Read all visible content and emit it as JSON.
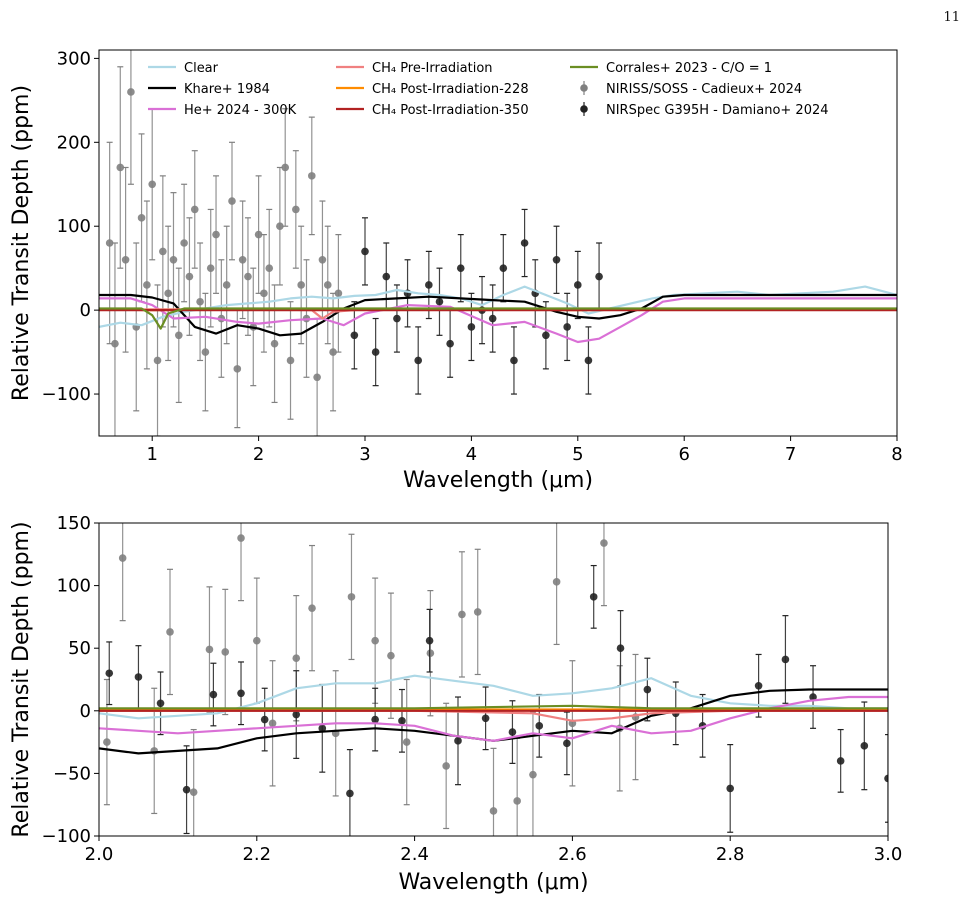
{
  "page_number": "11",
  "chart_data": [
    {
      "type": "line",
      "xlabel": "Wavelength (μm)",
      "ylabel": "Relative Transit Depth (ppm)",
      "xlim": [
        0.5,
        8
      ],
      "ylim": [
        -150,
        310
      ],
      "xticks": [
        1,
        2,
        3,
        4,
        5,
        6,
        7,
        8
      ],
      "yticks": [
        -100,
        0,
        100,
        200,
        300
      ],
      "legend_position": "top",
      "legend": [
        {
          "label": "Clear",
          "color": "#add8e6",
          "kind": "line"
        },
        {
          "label": "Khare+ 1984",
          "color": "#000000",
          "kind": "line"
        },
        {
          "label": "He+ 2024 - 300K",
          "color": "#da70d6",
          "kind": "line"
        },
        {
          "label": "CH₄ Pre-Irradiation",
          "color": "#f08080",
          "kind": "line"
        },
        {
          "label": "CH₄ Post-Irradiation-228",
          "color": "#ff8c00",
          "kind": "line"
        },
        {
          "label": "CH₄ Post-Irradiation-350",
          "color": "#b22222",
          "kind": "line"
        },
        {
          "label": "Corrales+ 2023 - C/O = 1",
          "color": "#6b8e23",
          "kind": "line"
        },
        {
          "label": "NIRISS/SOSS - Cadieux+ 2024",
          "color": "#808080",
          "kind": "errorbar"
        },
        {
          "label": "NIRSpec G395H - Damiano+ 2024",
          "color": "#222222",
          "kind": "errorbar"
        }
      ],
      "series": [
        {
          "name": "Clear",
          "color": "#add8e6",
          "x": [
            0.5,
            0.7,
            0.9,
            1.1,
            1.3,
            1.5,
            1.7,
            1.9,
            2.1,
            2.3,
            2.5,
            2.7,
            2.9,
            3.1,
            3.3,
            3.5,
            3.7,
            3.9,
            4.1,
            4.3,
            4.5,
            4.7,
            4.9,
            5.1,
            5.3,
            5.5,
            5.7,
            5.9,
            6.2,
            6.5,
            6.8,
            7.1,
            7.4,
            7.7,
            8.0
          ],
          "y": [
            -20,
            -15,
            -18,
            -8,
            -2,
            2,
            6,
            8,
            10,
            14,
            16,
            14,
            17,
            18,
            24,
            20,
            18,
            14,
            6,
            18,
            28,
            18,
            8,
            -4,
            2,
            8,
            14,
            18,
            20,
            22,
            18,
            20,
            22,
            28,
            18
          ]
        },
        {
          "name": "Khare+ 1984",
          "color": "#000000",
          "x": [
            0.5,
            0.8,
            1.0,
            1.2,
            1.4,
            1.6,
            1.8,
            2.0,
            2.2,
            2.4,
            2.6,
            2.8,
            3.0,
            3.3,
            3.6,
            3.9,
            4.2,
            4.5,
            4.8,
            5.0,
            5.2,
            5.4,
            5.6,
            5.8,
            6.0,
            6.5,
            7.0,
            7.5,
            8.0
          ],
          "y": [
            18,
            18,
            15,
            8,
            -20,
            -28,
            -18,
            -22,
            -30,
            -28,
            -14,
            2,
            12,
            14,
            16,
            14,
            12,
            10,
            -2,
            -8,
            -10,
            -6,
            2,
            16,
            18,
            18,
            18,
            18,
            18
          ]
        },
        {
          "name": "He+ 2024 - 300K",
          "color": "#da70d6",
          "x": [
            0.5,
            0.8,
            1.0,
            1.2,
            1.5,
            1.8,
            2.0,
            2.3,
            2.6,
            2.8,
            3.0,
            3.4,
            3.8,
            4.2,
            4.5,
            4.8,
            5.0,
            5.2,
            5.4,
            5.6,
            5.8,
            6.0,
            6.5,
            7.0,
            7.5,
            8.0
          ],
          "y": [
            14,
            14,
            6,
            -10,
            -8,
            -14,
            -16,
            -12,
            -10,
            -18,
            -4,
            6,
            4,
            -18,
            -14,
            -28,
            -38,
            -34,
            -20,
            -6,
            10,
            14,
            14,
            14,
            14,
            14
          ]
        },
        {
          "name": "CH₄ Pre-Irradiation",
          "color": "#f08080",
          "x": [
            0.5,
            1.0,
            2.0,
            2.5,
            2.6,
            2.7,
            3.0,
            4.0,
            5.0,
            6.0,
            7.0,
            8.0
          ],
          "y": [
            1,
            1,
            1,
            0,
            -10,
            -2,
            1,
            1,
            1,
            1,
            1,
            1
          ]
        },
        {
          "name": "CH₄ Post-Irradiation-228",
          "color": "#ff8c00",
          "x": [
            0.5,
            1.0,
            2.0,
            3.0,
            4.0,
            5.0,
            6.0,
            7.0,
            8.0
          ],
          "y": [
            1,
            0,
            1,
            1,
            1,
            0,
            1,
            1,
            1
          ]
        },
        {
          "name": "CH₄ Post-Irradiation-350",
          "color": "#b22222",
          "x": [
            0.5,
            1.0,
            2.0,
            3.0,
            4.0,
            5.0,
            6.0,
            7.0,
            8.0
          ],
          "y": [
            0,
            0,
            0,
            0,
            0,
            0,
            0,
            0,
            0
          ]
        },
        {
          "name": "Corrales+ 2023 - C/O = 1",
          "color": "#6b8e23",
          "x": [
            0.5,
            0.9,
            1.0,
            1.08,
            1.15,
            1.3,
            2.0,
            3.0,
            4.0,
            5.0,
            6.0,
            7.0,
            8.0
          ],
          "y": [
            2,
            2,
            -6,
            -22,
            -4,
            2,
            2,
            2,
            2,
            2,
            2,
            2,
            2
          ]
        },
        {
          "name": "NIRISS/SOSS - Cadieux+ 2024",
          "color": "#808080",
          "kind": "errorbar",
          "x": [
            0.6,
            0.65,
            0.7,
            0.75,
            0.8,
            0.85,
            0.9,
            0.95,
            1.0,
            1.05,
            1.1,
            1.15,
            1.2,
            1.25,
            1.3,
            1.35,
            1.4,
            1.45,
            1.5,
            1.55,
            1.6,
            1.65,
            1.7,
            1.75,
            1.8,
            1.85,
            1.9,
            1.95,
            2.0,
            2.05,
            2.1,
            2.15,
            2.2,
            2.25,
            2.3,
            2.35,
            2.4,
            2.45,
            2.5,
            2.55,
            2.6,
            2.65,
            2.7,
            2.75
          ],
          "y": [
            80,
            -40,
            170,
            60,
            260,
            -20,
            110,
            30,
            150,
            -60,
            70,
            20,
            60,
            -30,
            80,
            40,
            120,
            10,
            -50,
            50,
            90,
            -10,
            30,
            130,
            -70,
            60,
            40,
            -20,
            90,
            20,
            50,
            -40,
            100,
            170,
            -60,
            120,
            30,
            -10,
            160,
            -80,
            60,
            30,
            -50,
            20
          ],
          "err": [
            120,
            120,
            120,
            110,
            110,
            100,
            100,
            100,
            90,
            90,
            90,
            80,
            80,
            80,
            70,
            70,
            70,
            70,
            70,
            70,
            70,
            70,
            70,
            70,
            70,
            70,
            70,
            70,
            70,
            70,
            70,
            70,
            70,
            70,
            70,
            70,
            70,
            70,
            70,
            70,
            70,
            70,
            70,
            70
          ]
        },
        {
          "name": "NIRSpec G395H - Damiano+ 2024",
          "color": "#222222",
          "kind": "errorbar",
          "x": [
            2.9,
            3.0,
            3.1,
            3.2,
            3.3,
            3.4,
            3.5,
            3.6,
            3.7,
            3.8,
            3.9,
            4.0,
            4.1,
            4.2,
            4.3,
            4.4,
            4.5,
            4.6,
            4.7,
            4.8,
            4.9,
            5.0,
            5.1,
            5.2
          ],
          "y": [
            -30,
            70,
            -50,
            40,
            -10,
            20,
            -60,
            30,
            10,
            -40,
            50,
            -20,
            0,
            -10,
            50,
            -60,
            80,
            20,
            -30,
            60,
            -20,
            30,
            -60,
            40
          ],
          "err": [
            40,
            40,
            40,
            40,
            40,
            40,
            40,
            40,
            40,
            40,
            40,
            40,
            40,
            40,
            40,
            40,
            40,
            40,
            40,
            40,
            40,
            40,
            40,
            40
          ]
        }
      ]
    },
    {
      "type": "line",
      "xlabel": "Wavelength (μm)",
      "ylabel": "Relative Transit Depth (ppm)",
      "xlim": [
        2.0,
        3.0
      ],
      "ylim": [
        -100,
        150
      ],
      "xticks": [
        2.0,
        2.2,
        2.4,
        2.6,
        2.8,
        3.0
      ],
      "yticks": [
        -100,
        -50,
        0,
        50,
        100,
        150
      ],
      "series": [
        {
          "name": "Clear",
          "color": "#add8e6",
          "x": [
            2.0,
            2.05,
            2.1,
            2.15,
            2.2,
            2.25,
            2.3,
            2.35,
            2.4,
            2.45,
            2.5,
            2.55,
            2.6,
            2.65,
            2.7,
            2.75,
            2.8,
            2.85,
            2.9,
            2.95,
            3.0
          ],
          "y": [
            -2,
            -6,
            -4,
            -2,
            6,
            18,
            22,
            22,
            28,
            24,
            20,
            12,
            14,
            18,
            26,
            12,
            6,
            4,
            4,
            2,
            2
          ]
        },
        {
          "name": "Khare+ 1984",
          "color": "#000000",
          "x": [
            2.0,
            2.05,
            2.1,
            2.15,
            2.2,
            2.25,
            2.3,
            2.35,
            2.4,
            2.45,
            2.5,
            2.55,
            2.6,
            2.65,
            2.7,
            2.75,
            2.8,
            2.85,
            2.9,
            2.95,
            3.0
          ],
          "y": [
            -30,
            -34,
            -32,
            -30,
            -22,
            -18,
            -16,
            -14,
            -16,
            -20,
            -24,
            -20,
            -16,
            -18,
            -4,
            2,
            12,
            16,
            17,
            17,
            17
          ]
        },
        {
          "name": "He+ 2024 - 300K",
          "color": "#da70d6",
          "x": [
            2.0,
            2.05,
            2.1,
            2.15,
            2.2,
            2.25,
            2.3,
            2.35,
            2.4,
            2.45,
            2.5,
            2.55,
            2.6,
            2.65,
            2.7,
            2.75,
            2.8,
            2.85,
            2.9,
            2.95,
            3.0
          ],
          "y": [
            -14,
            -16,
            -18,
            -16,
            -14,
            -12,
            -10,
            -10,
            -12,
            -20,
            -24,
            -18,
            -22,
            -12,
            -18,
            -16,
            -6,
            2,
            8,
            11,
            11
          ]
        },
        {
          "name": "CH₄ Pre-Irradiation",
          "color": "#f08080",
          "x": [
            2.0,
            2.2,
            2.4,
            2.55,
            2.6,
            2.65,
            2.7,
            2.8,
            2.9,
            3.0
          ],
          "y": [
            0,
            0,
            0,
            -2,
            -8,
            -6,
            -2,
            0,
            0,
            0
          ]
        },
        {
          "name": "CH₄ Post-Irradiation-228",
          "color": "#ff8c00",
          "x": [
            2.0,
            2.2,
            2.4,
            2.6,
            2.8,
            3.0
          ],
          "y": [
            1,
            1,
            1,
            1,
            1,
            1
          ]
        },
        {
          "name": "CH₄ Post-Irradiation-350",
          "color": "#b22222",
          "x": [
            2.0,
            2.2,
            2.4,
            2.6,
            2.8,
            3.0
          ],
          "y": [
            0,
            0,
            0,
            0,
            0,
            0
          ]
        },
        {
          "name": "Corrales+ 2023 - C/O = 1",
          "color": "#6b8e23",
          "x": [
            2.0,
            2.2,
            2.4,
            2.6,
            2.7,
            2.8,
            3.0
          ],
          "y": [
            2,
            2,
            2,
            4,
            2,
            2,
            2
          ]
        },
        {
          "name": "NIRISS/SOSS - Cadieux+ 2024",
          "color": "#808080",
          "kind": "errorbar",
          "x": [
            2.01,
            2.03,
            2.07,
            2.09,
            2.12,
            2.14,
            2.16,
            2.18,
            2.2,
            2.22,
            2.25,
            2.27,
            2.3,
            2.32,
            2.35,
            2.37,
            2.39,
            2.42,
            2.44,
            2.46,
            2.48,
            2.5,
            2.53,
            2.55,
            2.58,
            2.6,
            2.64,
            2.66,
            2.68
          ],
          "y": [
            -25,
            122,
            -32,
            63,
            -65,
            49,
            47,
            138,
            56,
            -10,
            42,
            82,
            -18,
            91,
            56,
            44,
            -25,
            46,
            -44,
            77,
            79,
            -80,
            -72,
            -51,
            103,
            -10,
            134,
            -14,
            -5
          ],
          "err": [
            50,
            50,
            50,
            50,
            50,
            50,
            50,
            50,
            50,
            50,
            50,
            50,
            50,
            50,
            50,
            50,
            50,
            50,
            50,
            50,
            50,
            50,
            50,
            50,
            50,
            50,
            50,
            50,
            50
          ]
        },
        {
          "name": "NIRSpec G395H - Damiano+ 2024",
          "color": "#222222",
          "kind": "errorbar",
          "x": [
            2.013,
            2.05,
            2.078,
            2.111,
            2.145,
            2.18,
            2.21,
            2.25,
            2.283,
            2.318,
            2.35,
            2.384,
            2.419,
            2.455,
            2.49,
            2.524,
            2.558,
            2.593,
            2.627,
            2.661,
            2.695,
            2.731,
            2.765,
            2.8,
            2.836,
            2.87,
            2.905,
            2.94,
            2.97,
            3.0
          ],
          "y": [
            30,
            27,
            6,
            -63,
            13,
            14,
            -7,
            -3,
            -14,
            -66,
            -7,
            -8,
            56,
            -24,
            -6,
            -17,
            -12,
            -26,
            91,
            50,
            17,
            -2,
            -12,
            -62,
            20,
            41,
            11,
            -40,
            -28,
            -54
          ],
          "err": [
            25,
            25,
            25,
            35,
            25,
            25,
            25,
            35,
            35,
            35,
            25,
            25,
            25,
            35,
            25,
            25,
            25,
            25,
            25,
            30,
            25,
            25,
            25,
            35,
            25,
            35,
            25,
            25,
            35,
            35
          ]
        }
      ]
    }
  ]
}
